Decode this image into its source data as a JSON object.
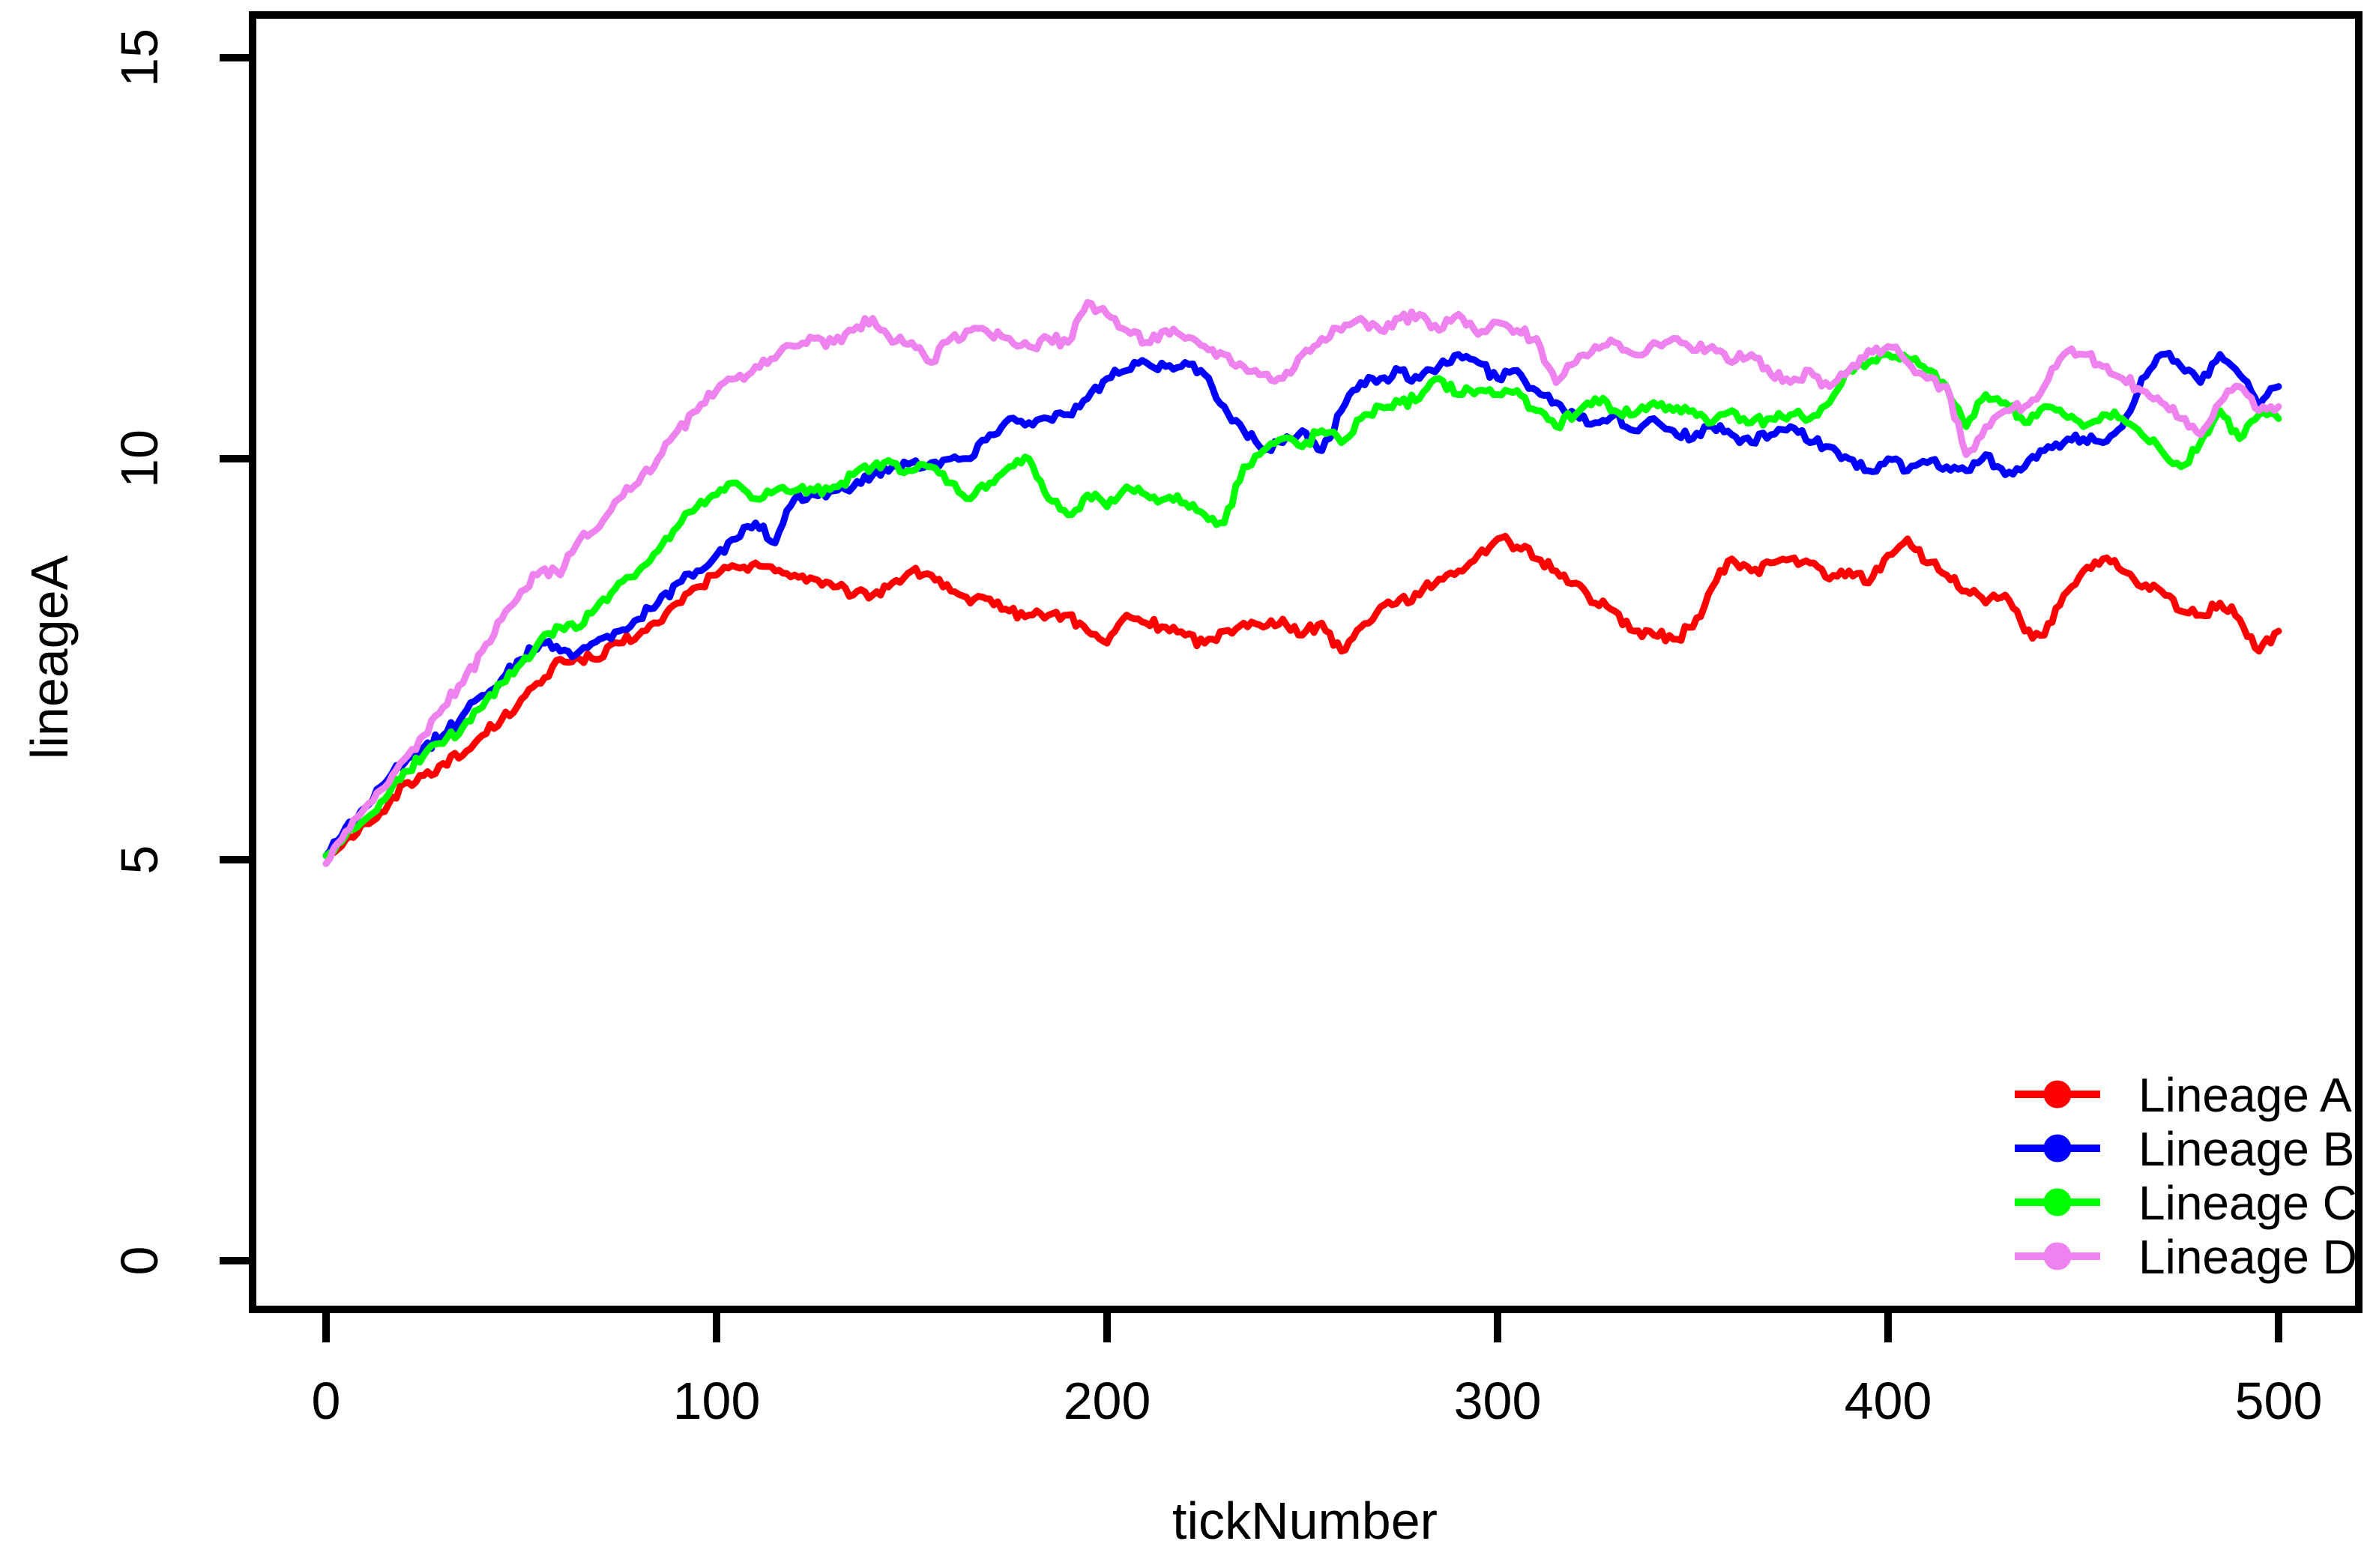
{
  "figure": {
    "background": "#FFFFFF",
    "frame_color": "#000000"
  },
  "axes": {
    "x": {
      "label": "tickNumber",
      "tick_values": [
        0,
        100,
        200,
        300,
        400,
        500
      ],
      "range": [
        0,
        500
      ]
    },
    "y": {
      "label": "lineageA",
      "tick_values": [
        0,
        5,
        10,
        15
      ],
      "range": [
        0,
        15
      ]
    }
  },
  "legend": {
    "position": "bottom-right",
    "items": [
      {
        "label": "Lineage A",
        "color": "#FF0000"
      },
      {
        "label": "Lineage B",
        "color": "#0000FF"
      },
      {
        "label": "Lineage C",
        "color": "#00FF00"
      },
      {
        "label": "Lineage D",
        "color": "#EE82EE"
      }
    ]
  },
  "chart_data": {
    "type": "line",
    "title": "",
    "xlabel": "tickNumber",
    "ylabel": "lineageA",
    "xlim": [
      0,
      500
    ],
    "ylim": [
      0,
      15
    ],
    "grid": false,
    "legend_position": "bottom-right",
    "x": [
      0,
      5,
      10,
      15,
      20,
      25,
      30,
      35,
      40,
      45,
      50,
      55,
      60,
      65,
      70,
      75,
      80,
      85,
      90,
      95,
      100,
      105,
      110,
      115,
      120,
      125,
      130,
      135,
      140,
      145,
      150,
      155,
      160,
      165,
      170,
      175,
      180,
      185,
      190,
      195,
      200,
      205,
      210,
      215,
      220,
      225,
      230,
      235,
      240,
      245,
      250,
      255,
      260,
      265,
      270,
      275,
      280,
      285,
      290,
      295,
      300,
      305,
      310,
      315,
      320,
      325,
      330,
      335,
      340,
      345,
      350,
      355,
      360,
      365,
      370,
      375,
      380,
      385,
      390,
      395,
      400,
      405,
      410,
      415,
      420,
      425,
      430,
      435,
      440,
      445,
      450,
      455,
      460,
      465,
      470,
      475,
      480,
      485,
      490,
      495,
      500
    ],
    "series": [
      {
        "name": "Lineage A",
        "color": "#FF0000",
        "values": [
          5.05,
          5.25,
          5.45,
          5.6,
          5.95,
          6.05,
          6.2,
          6.3,
          6.55,
          6.75,
          7.0,
          7.2,
          7.5,
          7.5,
          7.5,
          7.7,
          7.8,
          7.95,
          8.2,
          8.4,
          8.55,
          8.65,
          8.7,
          8.6,
          8.55,
          8.5,
          8.4,
          8.3,
          8.3,
          8.45,
          8.6,
          8.55,
          8.35,
          8.2,
          8.25,
          8.1,
          8.05,
          8.05,
          8.05,
          7.85,
          7.7,
          8.05,
          7.95,
          7.9,
          7.8,
          7.7,
          7.85,
          7.95,
          7.9,
          8.0,
          7.8,
          7.95,
          7.6,
          7.9,
          8.15,
          8.25,
          8.3,
          8.5,
          8.6,
          8.8,
          9.0,
          8.9,
          8.75,
          8.6,
          8.45,
          8.2,
          8.1,
          7.85,
          7.8,
          7.75,
          7.9,
          8.4,
          8.75,
          8.6,
          8.7,
          8.75,
          8.7,
          8.5,
          8.6,
          8.45,
          8.8,
          9.0,
          8.7,
          8.55,
          8.35,
          8.2,
          8.3,
          7.85,
          7.8,
          8.3,
          8.6,
          8.75,
          8.6,
          8.4,
          8.35,
          8.1,
          8.05,
          8.2,
          8.0,
          7.6,
          7.85
        ]
      },
      {
        "name": "Lineage B",
        "color": "#0000FF",
        "values": [
          5.05,
          5.4,
          5.65,
          5.95,
          6.2,
          6.4,
          6.55,
          6.8,
          7.05,
          7.25,
          7.5,
          7.7,
          7.6,
          7.6,
          7.75,
          7.85,
          8.0,
          8.2,
          8.45,
          8.6,
          8.8,
          9.0,
          9.2,
          8.95,
          9.5,
          9.55,
          9.6,
          9.65,
          9.8,
          9.9,
          9.95,
          9.95,
          10.0,
          10.0,
          10.3,
          10.5,
          10.45,
          10.5,
          10.55,
          10.75,
          11.0,
          11.1,
          11.2,
          11.15,
          11.2,
          11.05,
          10.65,
          10.35,
          10.1,
          10.2,
          10.35,
          10.1,
          10.6,
          10.95,
          11.0,
          11.1,
          11.0,
          11.15,
          11.3,
          11.2,
          11.0,
          11.1,
          10.85,
          10.7,
          10.55,
          10.45,
          10.55,
          10.35,
          10.5,
          10.35,
          10.25,
          10.4,
          10.3,
          10.2,
          10.3,
          10.4,
          10.2,
          10.15,
          10.0,
          9.85,
          10.0,
          9.85,
          9.95,
          9.9,
          9.85,
          10.05,
          9.8,
          9.9,
          10.1,
          10.2,
          10.25,
          10.2,
          10.4,
          11.0,
          11.3,
          11.15,
          10.95,
          11.3,
          11.05,
          10.65,
          10.9
        ]
      },
      {
        "name": "Lineage C",
        "color": "#00FF00",
        "values": [
          5.05,
          5.3,
          5.5,
          5.75,
          6.1,
          6.3,
          6.45,
          6.65,
          6.9,
          7.2,
          7.45,
          7.75,
          7.9,
          7.9,
          8.2,
          8.45,
          8.6,
          8.85,
          9.15,
          9.4,
          9.55,
          9.7,
          9.5,
          9.6,
          9.6,
          9.6,
          9.65,
          9.8,
          9.9,
          9.95,
          9.85,
          9.9,
          9.7,
          9.5,
          9.7,
          9.9,
          10.0,
          9.5,
          9.3,
          9.55,
          9.4,
          9.65,
          9.55,
          9.5,
          9.45,
          9.3,
          9.2,
          9.9,
          10.1,
          10.25,
          10.15,
          10.35,
          10.2,
          10.5,
          10.65,
          10.7,
          10.75,
          11.0,
          10.8,
          10.85,
          10.8,
          10.85,
          10.6,
          10.4,
          10.55,
          10.75,
          10.6,
          10.55,
          10.7,
          10.6,
          10.6,
          10.45,
          10.6,
          10.45,
          10.5,
          10.55,
          10.5,
          10.7,
          11.1,
          11.2,
          11.3,
          11.25,
          11.1,
          10.9,
          10.4,
          10.8,
          10.7,
          10.45,
          10.65,
          10.55,
          10.4,
          10.55,
          10.5,
          10.3,
          10.1,
          9.9,
          10.2,
          10.6,
          10.25,
          10.55,
          10.5
        ]
      },
      {
        "name": "Lineage D",
        "color": "#EE82EE",
        "values": [
          4.95,
          5.35,
          5.65,
          5.9,
          6.25,
          6.55,
          6.9,
          7.2,
          7.6,
          8.0,
          8.35,
          8.6,
          8.55,
          9.0,
          9.15,
          9.5,
          9.7,
          10.0,
          10.35,
          10.6,
          10.85,
          11.0,
          11.15,
          11.25,
          11.4,
          11.5,
          11.45,
          11.6,
          11.75,
          11.45,
          11.45,
          11.2,
          11.5,
          11.6,
          11.55,
          11.5,
          11.4,
          11.5,
          11.45,
          11.95,
          11.8,
          11.6,
          11.45,
          11.6,
          11.5,
          11.4,
          11.3,
          11.15,
          11.05,
          11.0,
          11.3,
          11.5,
          11.6,
          11.75,
          11.6,
          11.75,
          11.8,
          11.6,
          11.8,
          11.55,
          11.7,
          11.6,
          11.5,
          10.95,
          11.2,
          11.4,
          11.45,
          11.3,
          11.45,
          11.5,
          11.35,
          11.4,
          11.2,
          11.3,
          11.05,
          10.95,
          11.1,
          10.9,
          11.1,
          11.35,
          11.4,
          11.2,
          11.0,
          10.9,
          10.05,
          10.4,
          10.6,
          10.65,
          10.9,
          11.3,
          11.3,
          11.15,
          11.0,
          10.85,
          10.7,
          10.5,
          10.3,
          10.7,
          10.9,
          10.6,
          10.65
        ]
      }
    ]
  }
}
